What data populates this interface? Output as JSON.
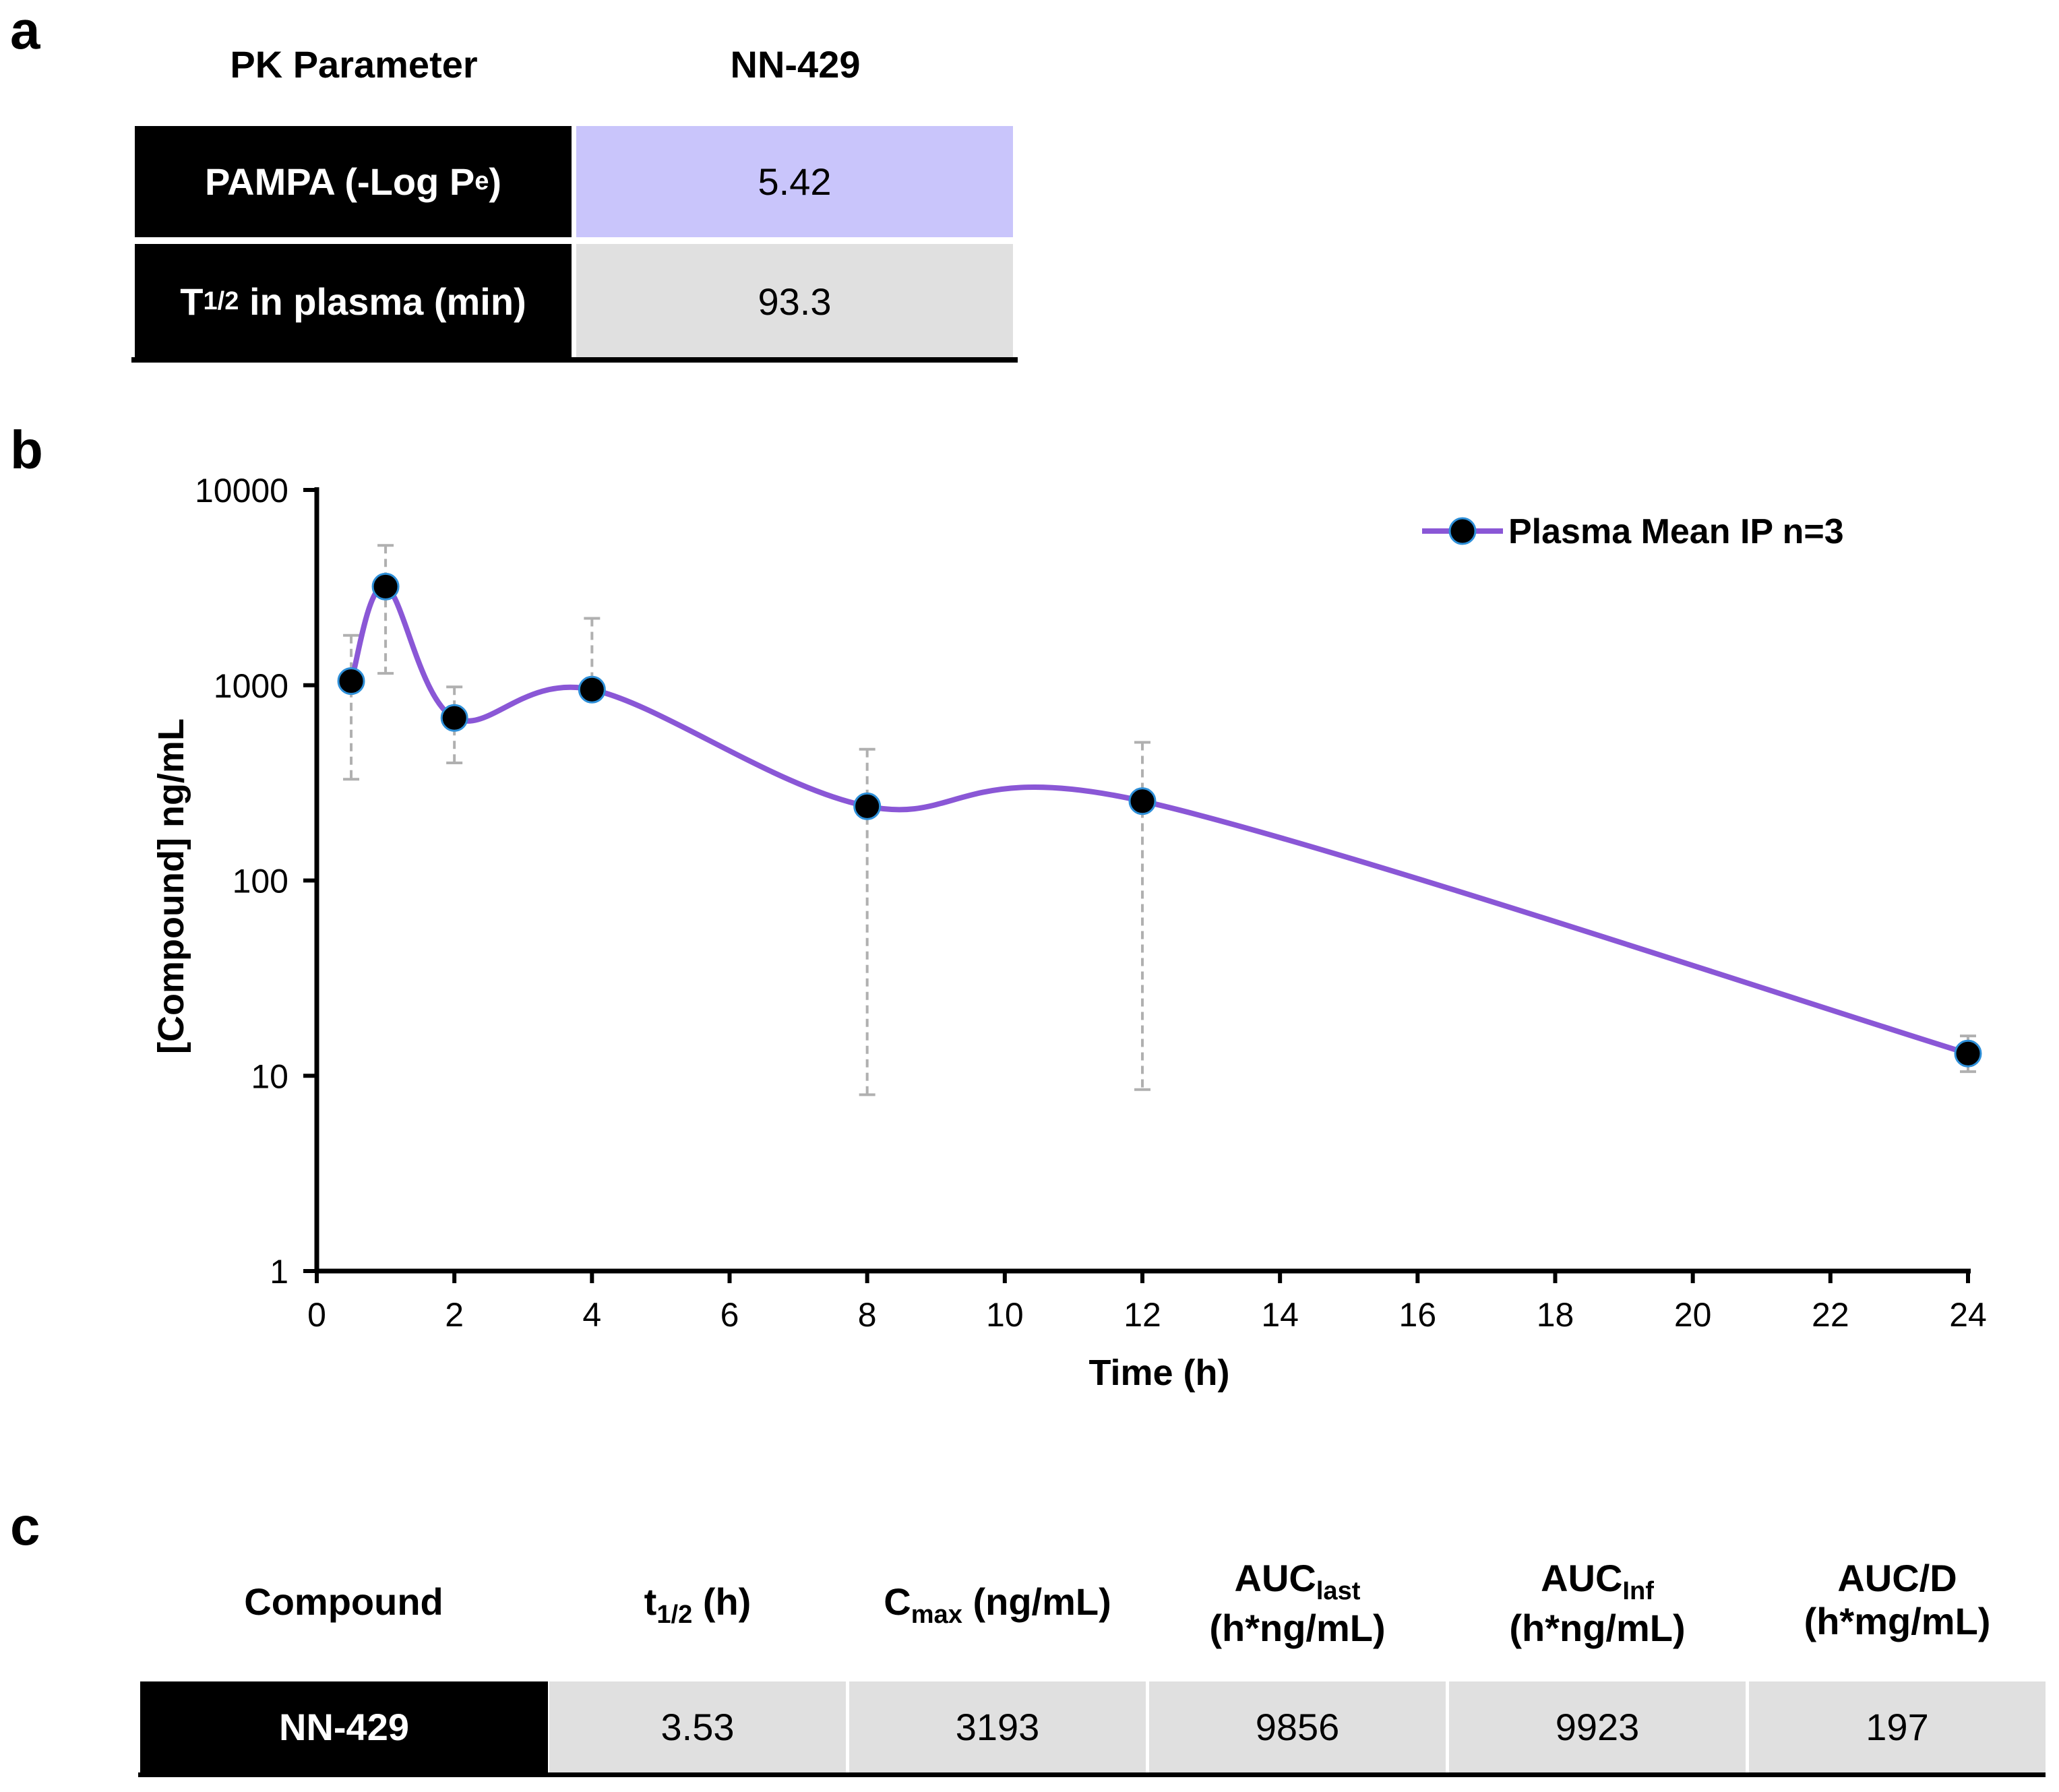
{
  "panel_a": {
    "label": "a",
    "header_param": "PK Parameter",
    "header_compound": "NN-429",
    "rows": [
      {
        "param_main": "PAMPA (-Log P",
        "param_sub": "e",
        "param_tail": ")",
        "value": "5.42"
      },
      {
        "param_main": "T",
        "param_sub": "1/2",
        "param_tail": " in plasma (min)",
        "value": "93.3"
      }
    ]
  },
  "panel_b": {
    "label": "b"
  },
  "panel_c": {
    "label": "c",
    "headers": {
      "compound": "Compound",
      "thalf_main": "t",
      "thalf_sub": "1/2",
      "thalf_tail": " (h)",
      "cmax_main": "C",
      "cmax_sub": "max",
      "cmax_tail": " (ng/mL)",
      "auclast_main": "AUC",
      "auclast_sub": "last",
      "auclast_unit": "(h*ng/mL)",
      "aucinf_main": "AUC",
      "aucinf_sub": "Inf",
      "aucinf_unit": "(h*ng/mL)",
      "aucd_main": "AUC/D",
      "aucd_unit": "(h*mg/mL)"
    },
    "row": {
      "compound": "NN-429",
      "thalf": "3.53",
      "cmax": "3193",
      "auclast": "9856",
      "aucinf": "9923",
      "aucd": "197"
    }
  },
  "chart_data": {
    "type": "line",
    "scale_y": "log10",
    "xlabel": "Time (h)",
    "ylabel": "[Compound] ng/mL",
    "xlim": [
      0,
      24
    ],
    "ylim": [
      1,
      10000
    ],
    "x_ticks": [
      0,
      2,
      4,
      6,
      8,
      10,
      12,
      14,
      16,
      18,
      20,
      22,
      24
    ],
    "y_ticks": [
      1,
      10,
      100,
      1000,
      10000
    ],
    "y_tick_labels": [
      "1",
      "10",
      "100",
      "1000",
      "10000"
    ],
    "series": [
      {
        "name": "Plasma Mean IP n=3",
        "color": "#8a57d6",
        "marker_color": "#000000",
        "marker_edge": "#2e8fd8",
        "x": [
          0.5,
          1,
          2,
          4,
          8,
          12,
          24
        ],
        "y": [
          1050,
          3200,
          680,
          950,
          240,
          255,
          13
        ],
        "err_low": [
          330,
          1150,
          400,
          null,
          8,
          8.5,
          10.5
        ],
        "err_high": [
          1800,
          5200,
          980,
          2200,
          470,
          510,
          16
        ]
      }
    ],
    "legend": "top-right",
    "error_bar_color": "#b0b0b0"
  }
}
